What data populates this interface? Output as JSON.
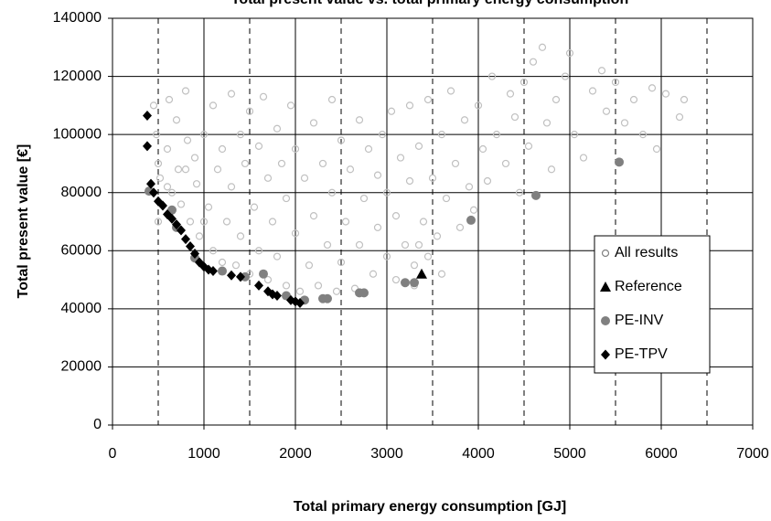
{
  "chart_data": {
    "type": "scatter",
    "title": "Total present value vs. total primary energy consumption",
    "x_label": "Total primary energy consumption [GJ]",
    "y_label": "Total present value [€]",
    "xlim": [
      0,
      7000
    ],
    "xticks": [
      0,
      1000,
      2000,
      3000,
      4000,
      5000,
      6000,
      7000
    ],
    "minor_xticks": [
      500,
      1500,
      2500,
      3500,
      4500,
      5500,
      6500
    ],
    "ylim": [
      0,
      140000
    ],
    "yticks": [
      0,
      20000,
      40000,
      60000,
      80000,
      100000,
      120000,
      140000
    ],
    "grid": true,
    "legend_position": "right",
    "series": [
      {
        "name": "All results",
        "color": "#c0c0c0",
        "marker": "open-circle",
        "x": [
          450,
          480,
          500,
          520,
          600,
          620,
          650,
          700,
          720,
          750,
          800,
          820,
          850,
          900,
          920,
          950,
          1000,
          1050,
          1100,
          1100,
          1150,
          1200,
          1200,
          1250,
          1300,
          1300,
          1350,
          1400,
          1400,
          1450,
          1500,
          1500,
          1550,
          1600,
          1600,
          1650,
          1700,
          1700,
          1750,
          1800,
          1800,
          1850,
          1900,
          1900,
          1950,
          2000,
          2000,
          2050,
          2100,
          2150,
          2200,
          2200,
          2250,
          2300,
          2350,
          2400,
          2400,
          2450,
          2500,
          2500,
          2550,
          2600,
          2650,
          2700,
          2700,
          2750,
          2800,
          2850,
          2900,
          2900,
          2950,
          3000,
          3000,
          3050,
          3100,
          3100,
          3150,
          3200,
          3250,
          3250,
          3300,
          3350,
          3400,
          3450,
          3450,
          3500,
          3550,
          3600,
          3600,
          3650,
          3700,
          3750,
          3800,
          3850,
          3900,
          3950,
          4000,
          4050,
          4100,
          4150,
          4200,
          4300,
          4350,
          4400,
          4450,
          4500,
          4550,
          4600,
          4700,
          4750,
          4800,
          4850,
          4950,
          5000,
          5050,
          5150,
          5250,
          5350,
          5400,
          5500,
          5600,
          5700,
          5800,
          5900,
          5950,
          6050,
          6200,
          6250,
          3300,
          3350,
          500,
          600,
          800,
          1000
        ],
        "values": [
          110000,
          100000,
          90000,
          85000,
          95000,
          112000,
          80000,
          105000,
          88000,
          76000,
          115000,
          98000,
          70000,
          92000,
          83000,
          65000,
          100000,
          75000,
          110000,
          60000,
          88000,
          95000,
          56000,
          70000,
          114000,
          82000,
          55000,
          100000,
          65000,
          90000,
          108000,
          52000,
          75000,
          96000,
          60000,
          113000,
          85000,
          50000,
          70000,
          102000,
          58000,
          90000,
          48000,
          78000,
          110000,
          66000,
          95000,
          46000,
          85000,
          55000,
          104000,
          72000,
          48000,
          90000,
          62000,
          112000,
          80000,
          46000,
          98000,
          56000,
          70000,
          88000,
          47000,
          105000,
          62000,
          78000,
          95000,
          52000,
          86000,
          68000,
          100000,
          58000,
          80000,
          108000,
          50000,
          72000,
          92000,
          62000,
          110000,
          84000,
          55000,
          96000,
          70000,
          112000,
          58000,
          85000,
          65000,
          100000,
          52000,
          78000,
          115000,
          90000,
          68000,
          105000,
          82000,
          74000,
          110000,
          95000,
          84000,
          120000,
          100000,
          90000,
          114000,
          106000,
          80000,
          118000,
          96000,
          125000,
          130000,
          104000,
          88000,
          112000,
          120000,
          128000,
          100000,
          92000,
          115000,
          122000,
          108000,
          118000,
          104000,
          112000,
          100000,
          116000,
          95000,
          114000,
          106000,
          112000,
          48000,
          62000,
          70000,
          82000,
          88000,
          70000
        ]
      },
      {
        "name": "Reference",
        "color": "#000000",
        "marker": "triangle",
        "x": [
          3380
        ],
        "values": [
          52000
        ]
      },
      {
        "name": "PE-INV",
        "color": "#808080",
        "marker": "circle",
        "x": [
          3920,
          4630,
          5540,
          3200,
          3300,
          2700,
          2750,
          2300,
          2350,
          1650,
          1450,
          1200,
          900,
          700,
          650,
          400,
          1900,
          2100
        ],
        "values": [
          70500,
          79000,
          90500,
          49000,
          49000,
          45500,
          45500,
          43500,
          43500,
          52000,
          51000,
          53000,
          57500,
          68000,
          74000,
          80500,
          44500,
          43000
        ]
      },
      {
        "name": "PE-TPV",
        "color": "#000000",
        "marker": "diamond",
        "x": [
          380,
          380,
          420,
          450,
          500,
          550,
          600,
          650,
          700,
          750,
          800,
          850,
          900,
          950,
          1000,
          1050,
          1100,
          1300,
          1400,
          1600,
          1700,
          1750,
          1800,
          1950,
          2000,
          2050
        ],
        "values": [
          106500,
          96000,
          83000,
          80000,
          77000,
          75500,
          72500,
          71000,
          69000,
          67000,
          64000,
          61500,
          59000,
          56000,
          54500,
          53500,
          53000,
          51500,
          51000,
          48000,
          46000,
          45000,
          44500,
          43000,
          42500,
          42000
        ]
      }
    ]
  }
}
